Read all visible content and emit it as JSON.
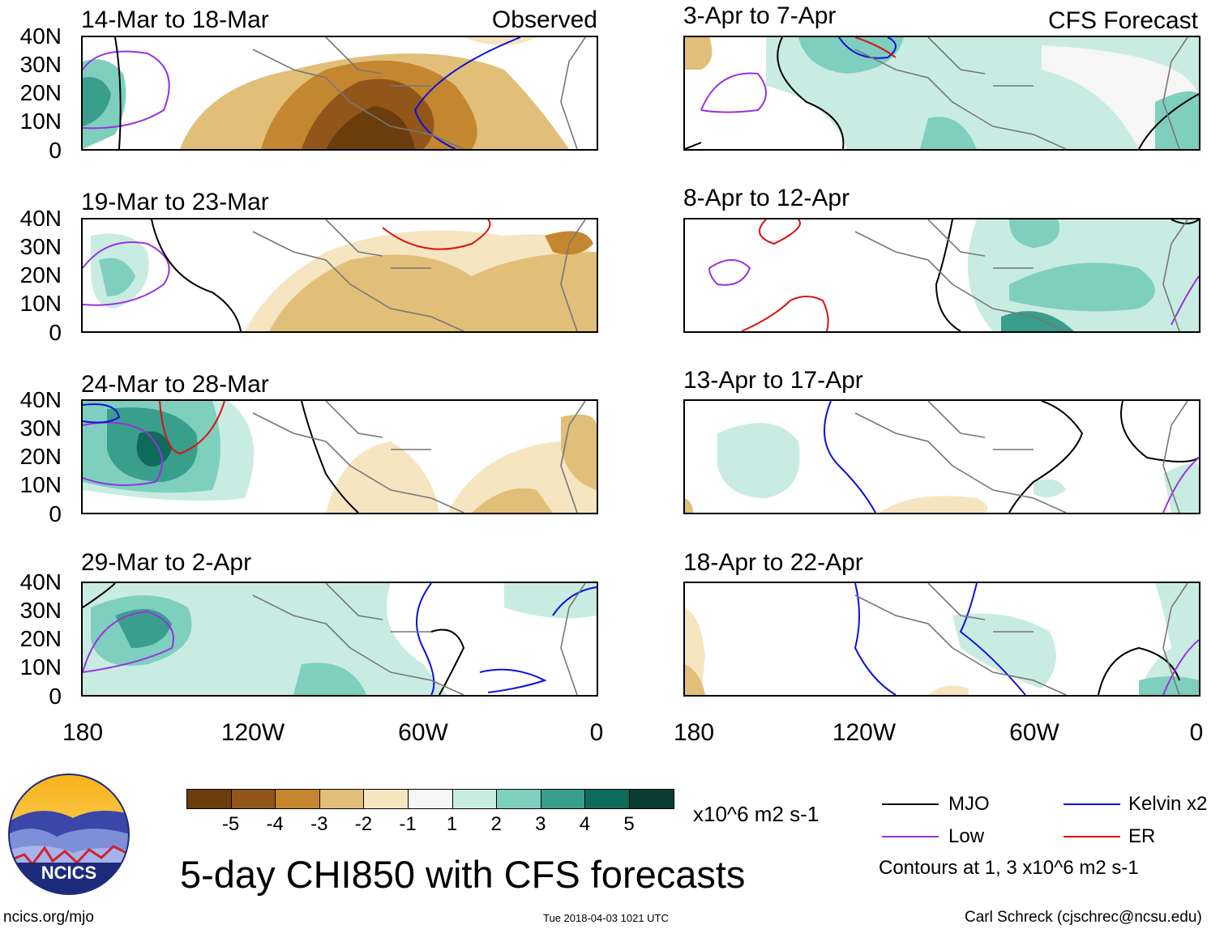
{
  "panels": [
    {
      "title": "14-Mar to 18-Mar",
      "tag": "Observed"
    },
    {
      "title": "19-Mar to 23-Mar",
      "tag": ""
    },
    {
      "title": "24-Mar to 28-Mar",
      "tag": ""
    },
    {
      "title": "29-Mar to 2-Apr",
      "tag": ""
    },
    {
      "title": "3-Apr to 7-Apr",
      "tag": "CFS Forecast"
    },
    {
      "title": "8-Apr to 12-Apr",
      "tag": ""
    },
    {
      "title": "13-Apr to 17-Apr",
      "tag": ""
    },
    {
      "title": "18-Apr to 22-Apr",
      "tag": ""
    }
  ],
  "y_labels": [
    "40N",
    "30N",
    "20N",
    "10N",
    "0"
  ],
  "x_labels": [
    "180",
    "120W",
    "60W",
    "0"
  ],
  "colorbar": {
    "unit": "x10^6 m2 s-1",
    "labels": [
      "-5",
      "-4",
      "-3",
      "-2",
      "-1",
      "1",
      "2",
      "3",
      "4",
      "5"
    ],
    "colors": [
      "#6b3d0c",
      "#93561a",
      "#c4862f",
      "#e1bf78",
      "#f5e6c1",
      "#f6f6f6",
      "#c9ece2",
      "#7fcfbf",
      "#3a9e8c",
      "#0e6b5c",
      "#0b3d34"
    ]
  },
  "legend": {
    "mjo": "MJO",
    "kelvin": "Kelvin x2",
    "low": "Low",
    "er": "ER",
    "contours": "Contours at 1, 3 x10^6 m2 s-1",
    "colors": {
      "mjo": "#000000",
      "kelvin": "#1010dd",
      "low": "#9933dd",
      "er": "#dd1111"
    }
  },
  "main_title": "5-day CHI850 with CFS forecasts",
  "logo_text": "NCICS",
  "footer": {
    "left": "ncics.org/mjo",
    "center": "Tue 2018-04-03 1021 UTC",
    "right": "Carl Schreck (cjschrec@ncsu.edu)"
  }
}
